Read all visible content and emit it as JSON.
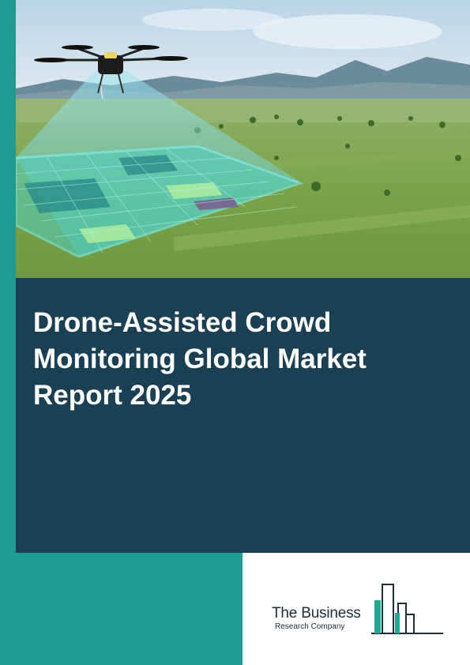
{
  "report": {
    "title": "Drone-Assisted Crowd Monitoring Global Market Report 2025"
  },
  "brand": {
    "name_line1": "The Business",
    "name_line2": "Research Company"
  },
  "colors": {
    "accent_teal": "#1f9c8f",
    "panel_navy": "#1b3f53",
    "logo_dark": "#1b2e3c",
    "logo_teal": "#22a894"
  },
  "images": {
    "hero": "drone-over-green-field-with-grid-overlay"
  }
}
